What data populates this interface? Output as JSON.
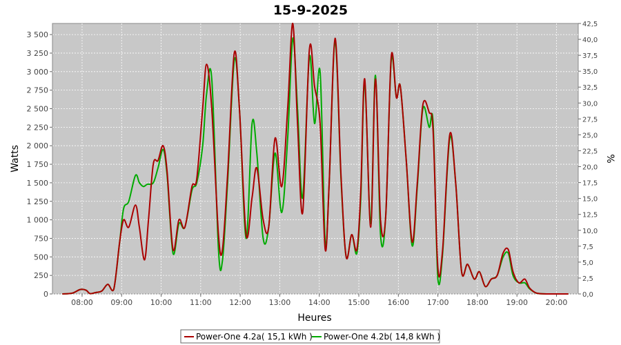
{
  "chart_data": {
    "type": "line",
    "title": "15-9-2025",
    "xlabel": "Heures",
    "ylabel": "Watts",
    "y2label": "%",
    "xlim": [
      7.25,
      20.55
    ],
    "ylim": [
      0,
      3650
    ],
    "y2lim": [
      0,
      42.5
    ],
    "x_ticks": [
      8,
      9,
      10,
      11,
      12,
      13,
      14,
      15,
      16,
      17,
      18,
      19,
      20
    ],
    "x_tick_labels": [
      "08:00",
      "09:00",
      "10:00",
      "11:00",
      "12:00",
      "13:00",
      "14:00",
      "15:00",
      "16:00",
      "17:00",
      "18:00",
      "19:00",
      "20:00"
    ],
    "y_ticks": [
      0,
      250,
      500,
      750,
      1000,
      1250,
      1500,
      1750,
      2000,
      2250,
      2500,
      2750,
      3000,
      3250,
      3500
    ],
    "y_tick_labels": [
      "0",
      "250",
      "500",
      "750",
      "1 000",
      "1 250",
      "1 500",
      "1 750",
      "2 000",
      "2 250",
      "2 500",
      "2 750",
      "3 000",
      "3 250",
      "3 500"
    ],
    "y2_ticks": [
      0,
      2.5,
      5,
      7.5,
      10,
      12.5,
      15,
      17.5,
      20,
      22.5,
      25,
      27.5,
      30,
      32.5,
      35,
      37.5,
      40,
      42.5
    ],
    "y2_tick_labels": [
      "0,0",
      "2,5",
      "5,0",
      "7,5",
      "10,0",
      "12,5",
      "15,0",
      "17,5",
      "20,0",
      "22,5",
      "25,0",
      "27,5",
      "30,0",
      "32,5",
      "35,0",
      "37,5",
      "40,0",
      "42,5"
    ],
    "grid": true,
    "legend_position": "bottom",
    "series": [
      {
        "name": "Power-One 4.2a( 15,1 kWh )",
        "color": "#aa0000",
        "points": [
          [
            7.5,
            0
          ],
          [
            7.75,
            10
          ],
          [
            7.95,
            60
          ],
          [
            8.1,
            50
          ],
          [
            8.2,
            5
          ],
          [
            8.35,
            20
          ],
          [
            8.5,
            40
          ],
          [
            8.65,
            130
          ],
          [
            8.8,
            60
          ],
          [
            8.95,
            700
          ],
          [
            9.05,
            1000
          ],
          [
            9.18,
            900
          ],
          [
            9.35,
            1200
          ],
          [
            9.45,
            900
          ],
          [
            9.58,
            460
          ],
          [
            9.68,
            1000
          ],
          [
            9.8,
            1750
          ],
          [
            9.92,
            1800
          ],
          [
            10.05,
            2000
          ],
          [
            10.15,
            1650
          ],
          [
            10.3,
            600
          ],
          [
            10.45,
            1000
          ],
          [
            10.6,
            900
          ],
          [
            10.78,
            1450
          ],
          [
            10.9,
            1550
          ],
          [
            11.05,
            2500
          ],
          [
            11.15,
            3100
          ],
          [
            11.28,
            2500
          ],
          [
            11.45,
            800
          ],
          [
            11.55,
            600
          ],
          [
            11.68,
            1600
          ],
          [
            11.85,
            3250
          ],
          [
            11.98,
            2500
          ],
          [
            12.15,
            800
          ],
          [
            12.3,
            1300
          ],
          [
            12.42,
            1700
          ],
          [
            12.58,
            1000
          ],
          [
            12.72,
            900
          ],
          [
            12.88,
            2100
          ],
          [
            13.05,
            1450
          ],
          [
            13.2,
            2500
          ],
          [
            13.33,
            3650
          ],
          [
            13.45,
            2300
          ],
          [
            13.58,
            1100
          ],
          [
            13.75,
            3300
          ],
          [
            13.88,
            2800
          ],
          [
            14.02,
            2300
          ],
          [
            14.15,
            600
          ],
          [
            14.25,
            1500
          ],
          [
            14.4,
            3450
          ],
          [
            14.55,
            1600
          ],
          [
            14.68,
            500
          ],
          [
            14.82,
            800
          ],
          [
            14.95,
            600
          ],
          [
            15.05,
            1400
          ],
          [
            15.15,
            2900
          ],
          [
            15.3,
            900
          ],
          [
            15.42,
            2900
          ],
          [
            15.55,
            1000
          ],
          [
            15.68,
            1050
          ],
          [
            15.82,
            3200
          ],
          [
            15.95,
            2650
          ],
          [
            16.05,
            2800
          ],
          [
            16.2,
            1800
          ],
          [
            16.35,
            700
          ],
          [
            16.48,
            1500
          ],
          [
            16.62,
            2550
          ],
          [
            16.78,
            2450
          ],
          [
            16.88,
            2200
          ],
          [
            17.0,
            350
          ],
          [
            17.12,
            600
          ],
          [
            17.3,
            2150
          ],
          [
            17.45,
            1500
          ],
          [
            17.6,
            300
          ],
          [
            17.75,
            400
          ],
          [
            17.92,
            200
          ],
          [
            18.05,
            300
          ],
          [
            18.2,
            100
          ],
          [
            18.35,
            200
          ],
          [
            18.5,
            250
          ],
          [
            18.65,
            550
          ],
          [
            18.78,
            600
          ],
          [
            18.9,
            300
          ],
          [
            19.05,
            150
          ],
          [
            19.2,
            200
          ],
          [
            19.32,
            80
          ],
          [
            19.5,
            10
          ],
          [
            19.75,
            0
          ],
          [
            20.3,
            0
          ]
        ]
      },
      {
        "name": "Power-One 4.2b( 14,8 kWh )",
        "color": "#00aa00",
        "points": [
          [
            7.5,
            0
          ],
          [
            7.75,
            10
          ],
          [
            7.95,
            60
          ],
          [
            8.1,
            50
          ],
          [
            8.2,
            5
          ],
          [
            8.35,
            20
          ],
          [
            8.5,
            40
          ],
          [
            8.65,
            130
          ],
          [
            8.8,
            60
          ],
          [
            8.95,
            700
          ],
          [
            9.05,
            1150
          ],
          [
            9.18,
            1250
          ],
          [
            9.35,
            1600
          ],
          [
            9.45,
            1500
          ],
          [
            9.55,
            1450
          ],
          [
            9.65,
            1480
          ],
          [
            9.8,
            1500
          ],
          [
            9.92,
            1700
          ],
          [
            10.05,
            1950
          ],
          [
            10.15,
            1600
          ],
          [
            10.3,
            550
          ],
          [
            10.45,
            950
          ],
          [
            10.6,
            900
          ],
          [
            10.78,
            1400
          ],
          [
            10.9,
            1500
          ],
          [
            11.05,
            2000
          ],
          [
            11.15,
            2700
          ],
          [
            11.28,
            2900
          ],
          [
            11.45,
            600
          ],
          [
            11.55,
            450
          ],
          [
            11.68,
            1500
          ],
          [
            11.85,
            3150
          ],
          [
            11.98,
            2500
          ],
          [
            12.15,
            750
          ],
          [
            12.3,
            2300
          ],
          [
            12.42,
            1900
          ],
          [
            12.58,
            750
          ],
          [
            12.72,
            900
          ],
          [
            12.88,
            1900
          ],
          [
            13.05,
            1100
          ],
          [
            13.2,
            2100
          ],
          [
            13.33,
            3450
          ],
          [
            13.45,
            2500
          ],
          [
            13.58,
            1300
          ],
          [
            13.75,
            3200
          ],
          [
            13.88,
            2300
          ],
          [
            14.02,
            3000
          ],
          [
            14.15,
            700
          ],
          [
            14.25,
            1500
          ],
          [
            14.4,
            3400
          ],
          [
            14.55,
            1550
          ],
          [
            14.68,
            500
          ],
          [
            14.82,
            800
          ],
          [
            14.95,
            550
          ],
          [
            15.05,
            1300
          ],
          [
            15.15,
            2850
          ],
          [
            15.3,
            950
          ],
          [
            15.42,
            2950
          ],
          [
            15.55,
            800
          ],
          [
            15.68,
            1050
          ],
          [
            15.82,
            3150
          ],
          [
            15.95,
            2650
          ],
          [
            16.05,
            2800
          ],
          [
            16.2,
            1800
          ],
          [
            16.35,
            650
          ],
          [
            16.48,
            1450
          ],
          [
            16.62,
            2500
          ],
          [
            16.78,
            2250
          ],
          [
            16.88,
            2300
          ],
          [
            17.0,
            200
          ],
          [
            17.12,
            550
          ],
          [
            17.3,
            2100
          ],
          [
            17.45,
            1500
          ],
          [
            17.6,
            300
          ],
          [
            17.75,
            400
          ],
          [
            17.92,
            200
          ],
          [
            18.05,
            300
          ],
          [
            18.2,
            100
          ],
          [
            18.35,
            200
          ],
          [
            18.5,
            250
          ],
          [
            18.65,
            500
          ],
          [
            18.78,
            550
          ],
          [
            18.9,
            250
          ],
          [
            19.05,
            150
          ],
          [
            19.2,
            150
          ],
          [
            19.32,
            70
          ],
          [
            19.5,
            10
          ],
          [
            19.75,
            0
          ],
          [
            20.3,
            0
          ]
        ]
      }
    ]
  }
}
